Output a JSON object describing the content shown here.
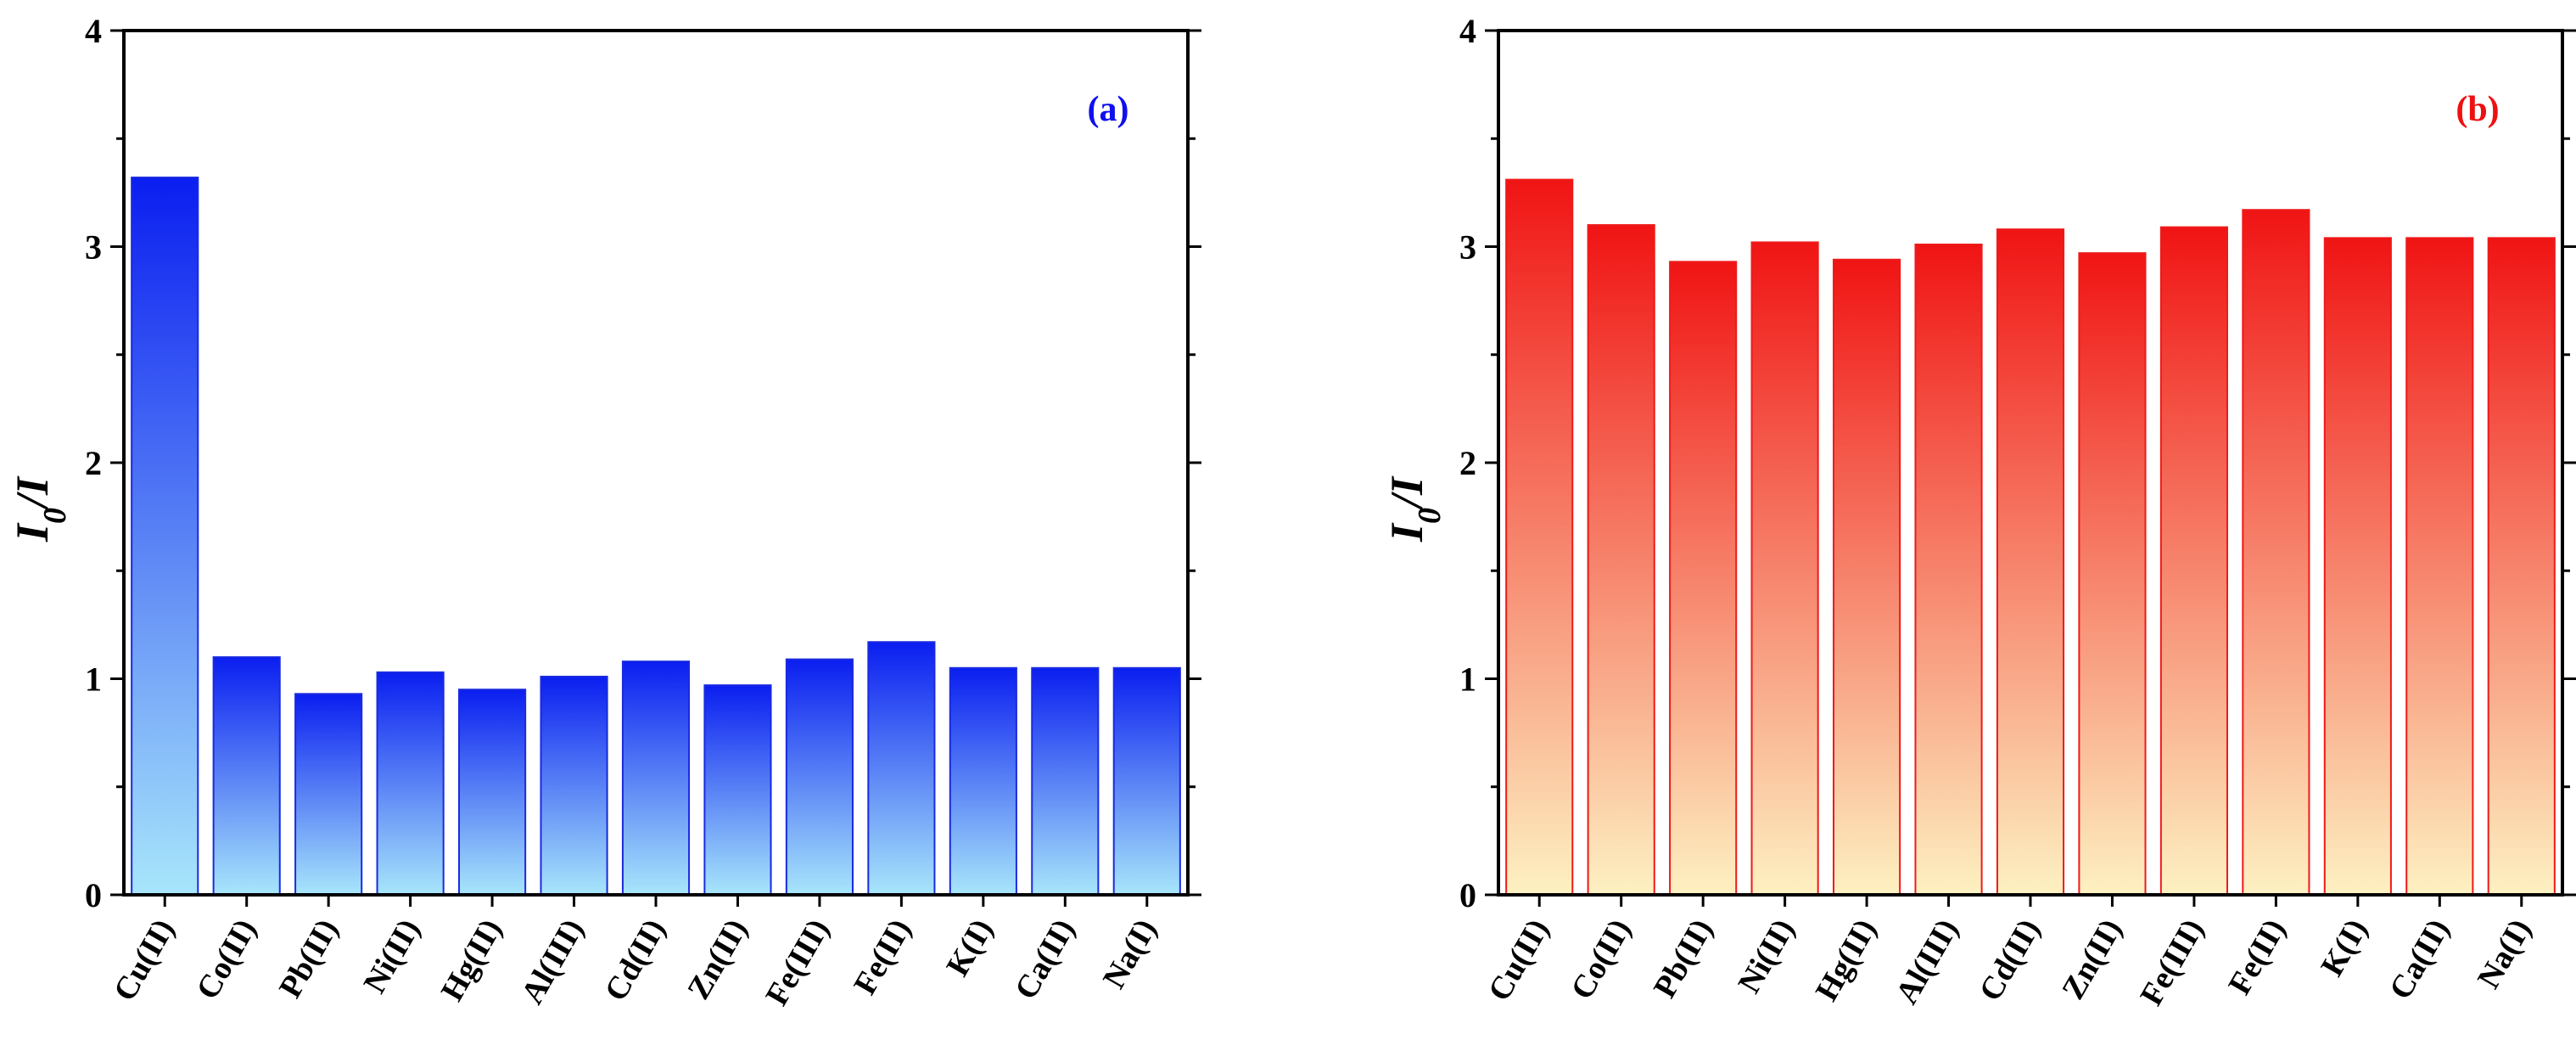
{
  "chart_data": [
    {
      "type": "bar",
      "panel_label": "(a)",
      "panel_label_color": "#1010ee",
      "ylabel_main": "I",
      "ylabel_sub": "0",
      "ylabel_rest": "/I",
      "ylim": [
        0,
        4
      ],
      "yticks": [
        "0",
        "1",
        "2",
        "3",
        "4"
      ],
      "categories": [
        "Cu(II)",
        "Co(II)",
        "Pb(II)",
        "Ni(II)",
        "Hg(II)",
        "Al(III)",
        "Cd(II)",
        "Zn(II)",
        "Fe(III)",
        "Fe(II)",
        "K(I)",
        "Ca(II)",
        "Na(I)"
      ],
      "values": [
        3.32,
        1.1,
        0.93,
        1.03,
        0.95,
        1.01,
        1.08,
        0.97,
        1.09,
        1.17,
        1.05,
        1.05,
        1.05
      ],
      "fill_top": "#0a1ef0",
      "fill_bottom": "#a8e6fb",
      "edge_color": "#1a2ae0"
    },
    {
      "type": "bar",
      "panel_label": "(b)",
      "panel_label_color": "#ee1010",
      "ylabel_main": "I",
      "ylabel_sub": "0",
      "ylabel_rest": "/I",
      "ylim": [
        0,
        4
      ],
      "yticks": [
        "0",
        "1",
        "2",
        "3",
        "4"
      ],
      "categories": [
        "Cu(II)",
        "Co(II)",
        "Pb(II)",
        "Ni(II)",
        "Hg(II)",
        "Al(III)",
        "Cd(II)",
        "Zn(II)",
        "Fe(III)",
        "Fe(II)",
        "K(I)",
        "Ca(II)",
        "Na(I)"
      ],
      "values": [
        3.31,
        3.1,
        2.93,
        3.02,
        2.94,
        3.01,
        3.08,
        2.97,
        3.09,
        3.17,
        3.04,
        3.04,
        3.04
      ],
      "fill_top": "#f01414",
      "fill_bottom": "#fdf1c2",
      "edge_color": "#ee1a1a"
    }
  ]
}
